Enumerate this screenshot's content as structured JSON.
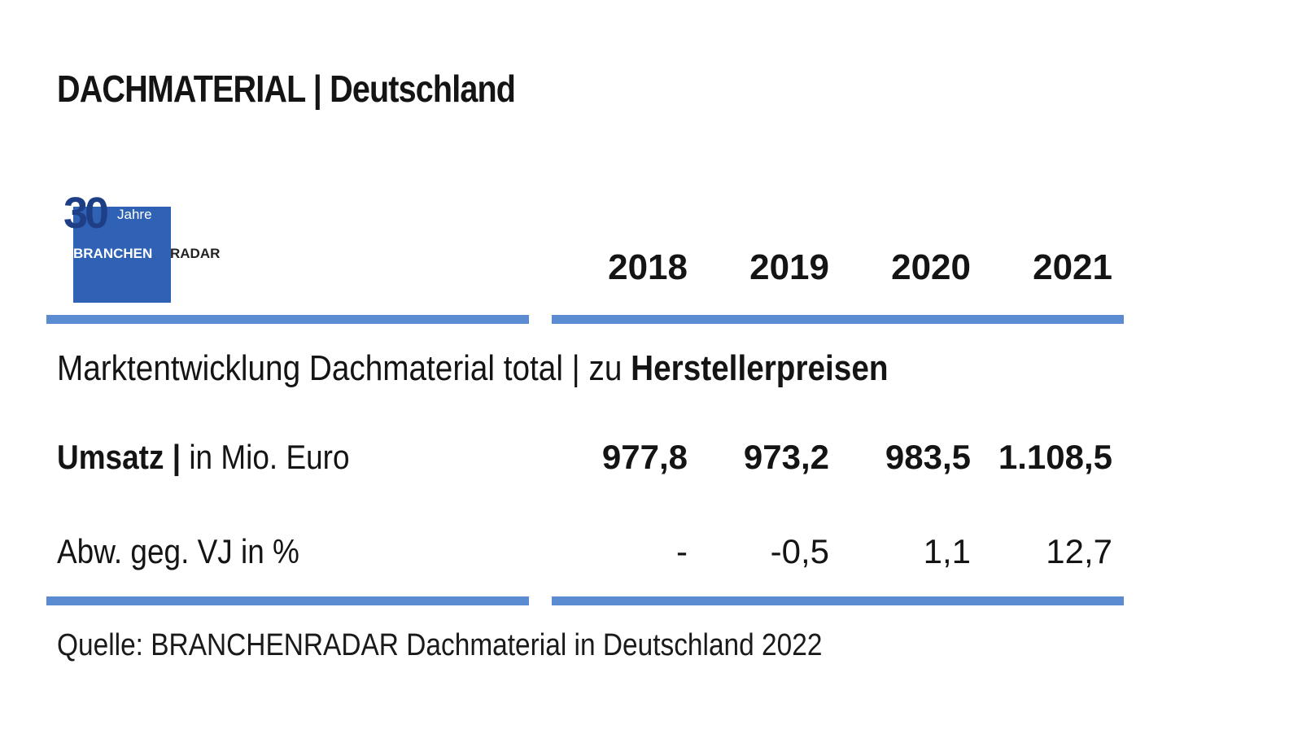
{
  "title": "DACHMATERIAL | Deutschland",
  "logo": {
    "number": "30",
    "jahre": "Jahre",
    "brand_part1": "BRANCHEN",
    "brand_part2": "RADAR"
  },
  "section": {
    "label_prefix": "Marktentwicklung Dachmaterial total | zu ",
    "label_bold": "Herstellerpreisen"
  },
  "colors": {
    "rule": "#5b8bd0",
    "logo_blue": "#2f62b4"
  },
  "chart_data": {
    "type": "table",
    "columns": [
      "2018",
      "2019",
      "2020",
      "2021"
    ],
    "rows": [
      {
        "label_bold": "Umsatz |",
        "label_rest": " in Mio. Euro",
        "values": [
          "977,8",
          "973,2",
          "983,5",
          "1.108,5"
        ]
      },
      {
        "label_bold": "",
        "label_rest": "Abw. geg. VJ in %",
        "values": [
          "-",
          "-0,5",
          "1,1",
          "12,7"
        ]
      }
    ],
    "source": "Quelle: BRANCHENRADAR Dachmaterial in Deutschland 2022"
  }
}
